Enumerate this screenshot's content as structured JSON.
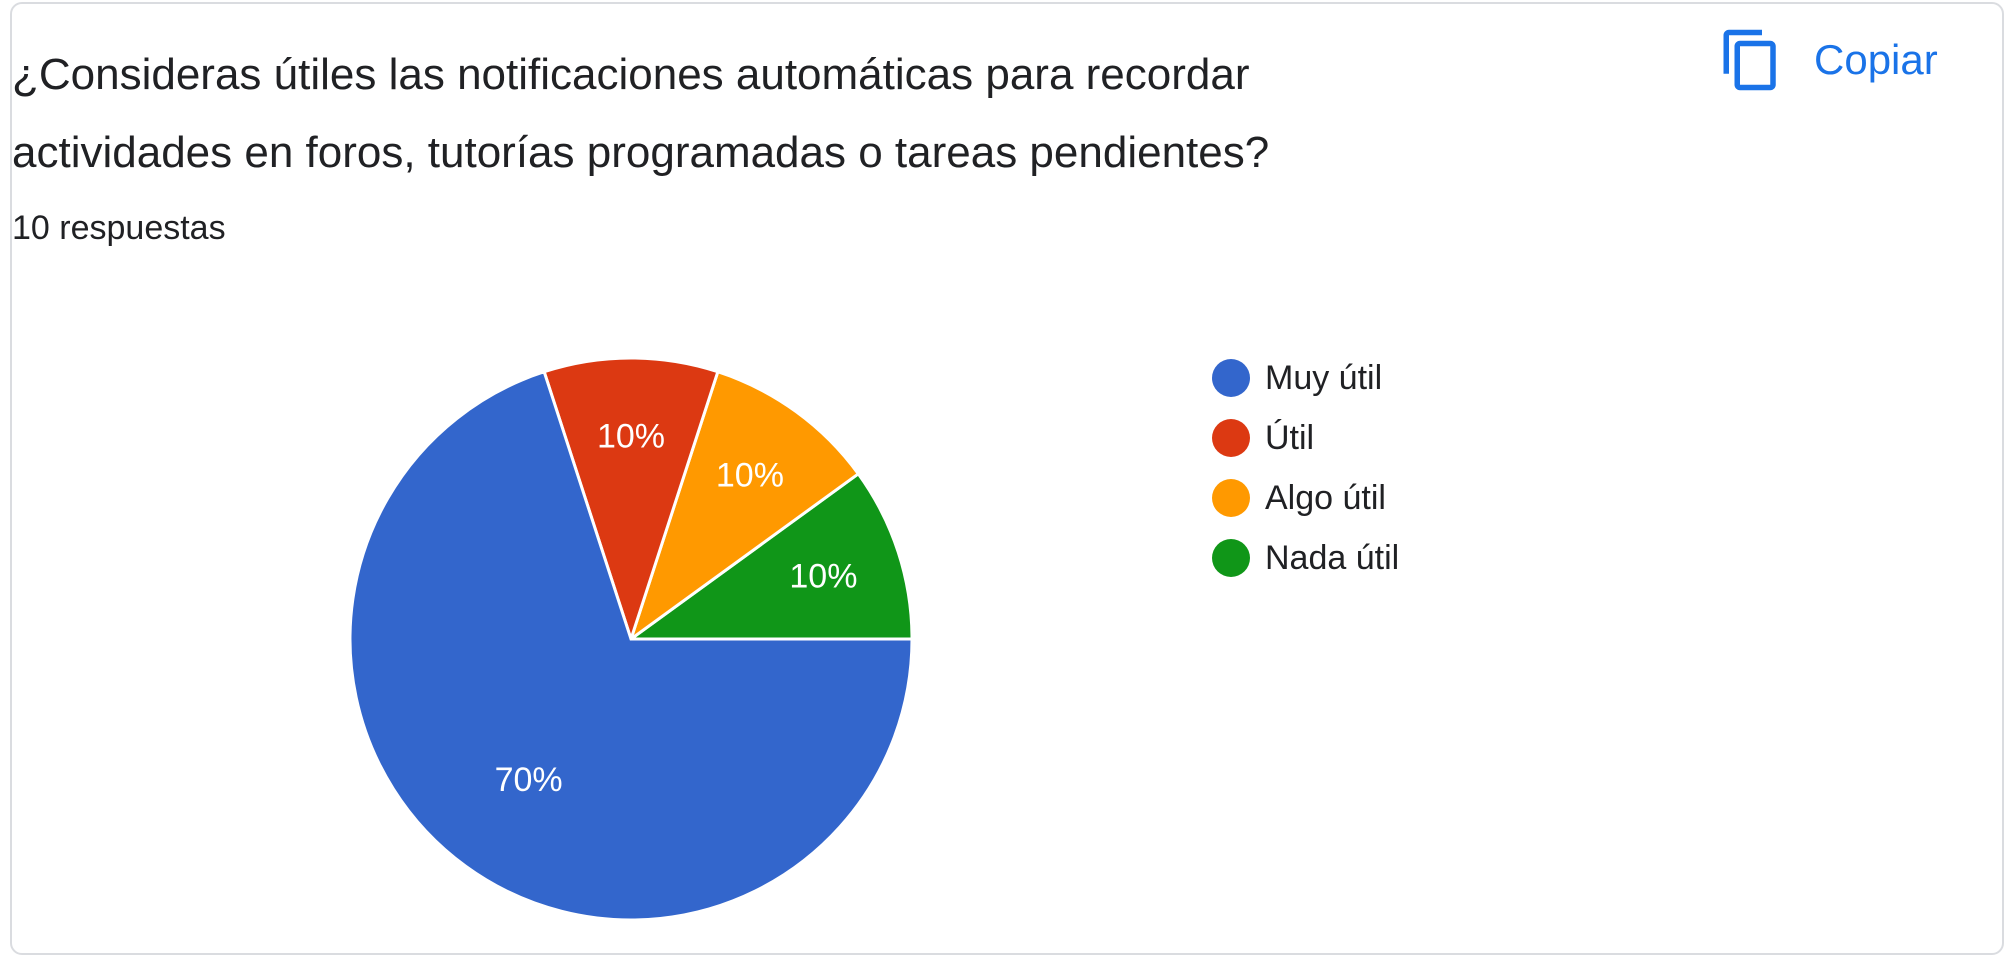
{
  "question": {
    "title": "¿Consideras útiles las notificaciones automáticas para recordar\nactividades en foros, tutorías programadas o tareas pendientes?",
    "responses": "10 respuestas"
  },
  "toolbar": {
    "copy_label": "Copiar",
    "copy_icon": "copy-icon"
  },
  "colors": {
    "accent": "#1a73e8",
    "border": "#dadce0"
  },
  "chart_data": {
    "type": "pie",
    "categories": [
      "Muy útil",
      "Útil",
      "Algo útil",
      "Nada útil"
    ],
    "values": [
      70,
      10,
      10,
      10
    ],
    "labels": [
      "70%",
      "10%",
      "10%",
      "10%"
    ],
    "colors": [
      "#3366cc",
      "#dc3912",
      "#ff9900",
      "#109618"
    ],
    "legend": "right"
  }
}
